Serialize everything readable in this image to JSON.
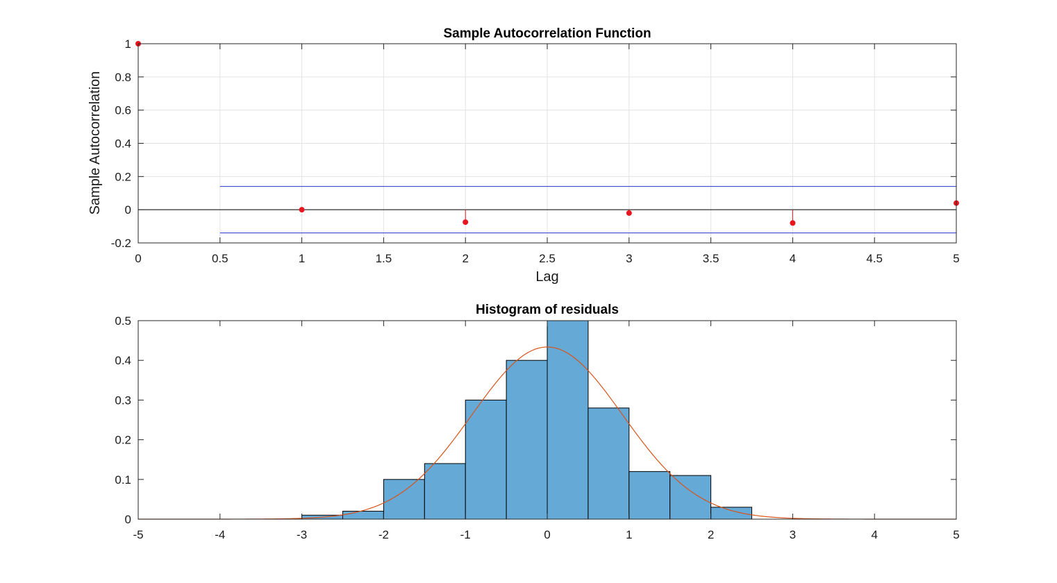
{
  "chart_data": [
    {
      "type": "stem",
      "title": "Sample Autocorrelation Function",
      "xlabel": "Lag",
      "ylabel": "Sample Autocorrelation",
      "xlim": [
        0,
        5
      ],
      "ylim": [
        -0.2,
        1
      ],
      "grid": true,
      "xticks": [
        "0",
        "0.5",
        "1",
        "1.5",
        "2",
        "2.5",
        "3",
        "3.5",
        "4",
        "4.5",
        "5"
      ],
      "yticks": [
        "-0.2",
        "0",
        "0.2",
        "0.4",
        "0.6",
        "0.8",
        "1"
      ],
      "lags": [
        0,
        1,
        2,
        3,
        4,
        5
      ],
      "values": [
        1.0,
        0.0,
        -0.075,
        -0.02,
        -0.08,
        0.04
      ],
      "confidence_bounds": {
        "x": [
          0.5,
          5
        ],
        "upper": 0.14,
        "lower": -0.14
      },
      "colors": {
        "stem": "#e8141e",
        "bounds": "#2233cc",
        "zero": "#000000"
      }
    },
    {
      "type": "histogram",
      "title": "Histogram of residuals",
      "xlim": [
        -5,
        5
      ],
      "ylim": [
        0,
        0.5
      ],
      "grid": false,
      "xticks": [
        "-5",
        "-4",
        "-3",
        "-2",
        "-1",
        "0",
        "1",
        "2",
        "3",
        "4",
        "5"
      ],
      "yticks": [
        "0",
        "0.1",
        "0.2",
        "0.3",
        "0.4",
        "0.5"
      ],
      "bin_edges": [
        -3,
        -2.5,
        -2,
        -1.5,
        -1,
        -0.5,
        0,
        0.5,
        1,
        1.5,
        2,
        2.5
      ],
      "values": [
        0.01,
        0.02,
        0.1,
        0.14,
        0.3,
        0.4,
        0.5,
        0.28,
        0.12,
        0.11,
        0.03
      ],
      "fit_curve": {
        "type": "normal pdf",
        "mean": 0,
        "std": 0.92
      },
      "colors": {
        "bar": "#65a9d7",
        "edge": "#000000",
        "curve": "#d95319"
      }
    }
  ]
}
